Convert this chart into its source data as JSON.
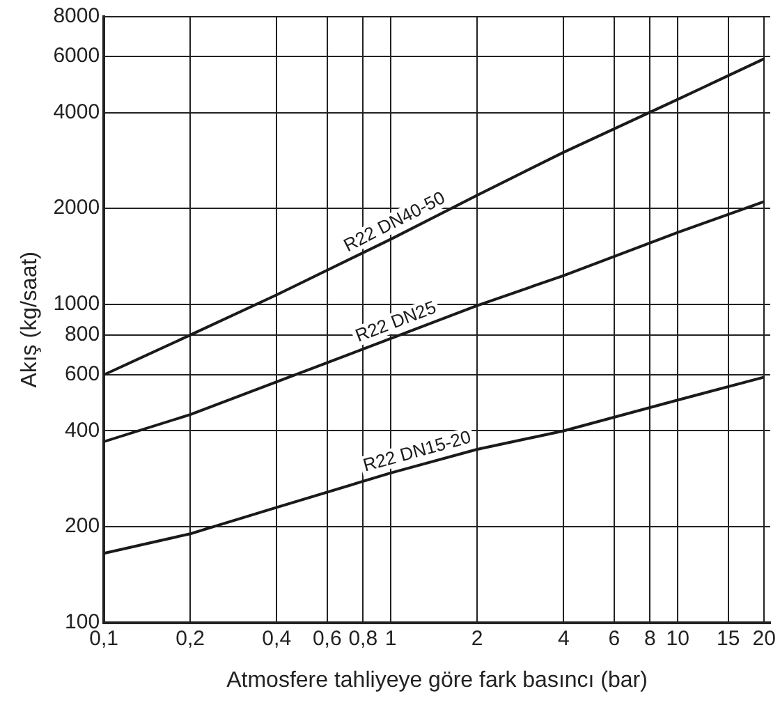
{
  "chart_data": {
    "type": "line",
    "xlabel": "Atmosfere tahliyeye göre fark basıncı (bar)",
    "ylabel": "Akış (kg/saat)",
    "x": [
      0.1,
      0.2,
      0.4,
      1,
      2,
      4,
      10,
      20
    ],
    "series": [
      {
        "name": "R22 DN40-50",
        "color": "#1a1a1a",
        "values": [
          600,
          800,
          1070,
          1600,
          2200,
          3000,
          4400,
          5900
        ]
      },
      {
        "name": "R22 DN25",
        "color": "#1a1a1a",
        "values": [
          370,
          450,
          570,
          780,
          990,
          1230,
          1680,
          2100
        ]
      },
      {
        "name": "R22 DN15-20",
        "color": "#1a1a1a",
        "values": [
          165,
          190,
          230,
          295,
          350,
          400,
          500,
          590
        ]
      }
    ],
    "log": "xy",
    "xlim": [
      0.1,
      21
    ],
    "ylim": [
      100,
      8000
    ],
    "xticks": [
      {
        "value": 0.1,
        "label": "0,1"
      },
      {
        "value": 0.2,
        "label": "0,2"
      },
      {
        "value": 0.4,
        "label": "0,4"
      },
      {
        "value": 0.6,
        "label": "0,6"
      },
      {
        "value": 0.8,
        "label": "0,8"
      },
      1,
      2,
      4,
      6,
      8,
      10,
      15,
      20
    ],
    "yticks": [
      100,
      200,
      400,
      600,
      800,
      1000,
      2000,
      4000,
      6000,
      8000
    ],
    "grid": true,
    "legend": false,
    "marker": "none",
    "line_style": "solid"
  }
}
